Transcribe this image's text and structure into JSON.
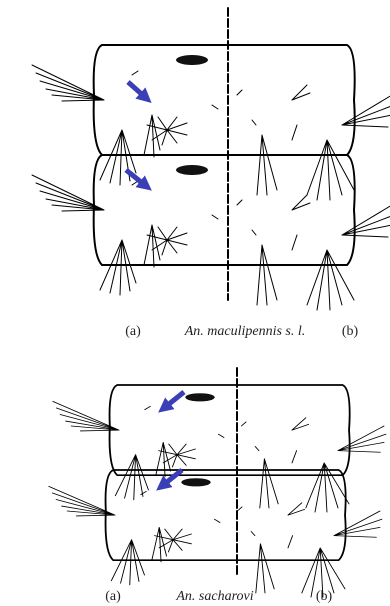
{
  "figures": [
    {
      "label_a": "(a)",
      "species": "An. maculipennis s. l.",
      "label_b": "(b)"
    },
    {
      "label_a": "(a)",
      "species": "An. sacharovi",
      "label_b": "(b)"
    }
  ]
}
